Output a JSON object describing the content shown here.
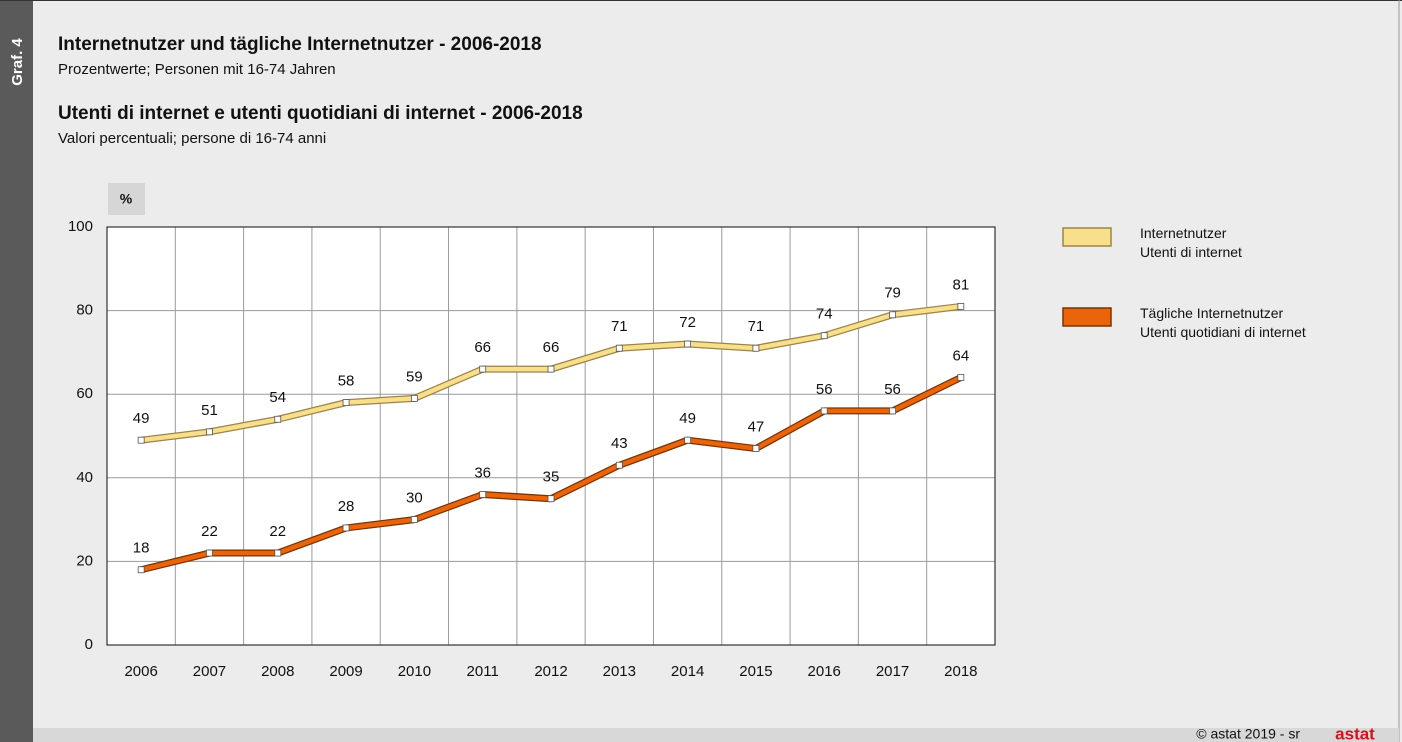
{
  "chart_data": {
    "type": "line",
    "figure_label": "Graf. 4",
    "title": "Internetnutzer und tägliche Internetnutzer - 2006-2018",
    "subtitle": "Prozentwerte; Personen mit 16-74 Jahren",
    "title_it": "Utenti di internet e utenti quotidiani di internet - 2006-2018",
    "subtitle_it": "Valori percentuali; persone di 16-74 anni",
    "y_unit": "%",
    "categories": [
      "2006",
      "2007",
      "2008",
      "2009",
      "2010",
      "2011",
      "2012",
      "2013",
      "2014",
      "2015",
      "2016",
      "2017",
      "2018"
    ],
    "series": [
      {
        "name": "Internetnutzer\nUtenti di internet",
        "color": "#f7df8c",
        "outline": "#9c8448",
        "values": [
          49,
          51,
          54,
          58,
          59,
          66,
          66,
          71,
          72,
          71,
          74,
          79,
          81
        ]
      },
      {
        "name": "Tägliche Internetnutzer\nUtenti quotidiani di internet",
        "color": "#ea640c",
        "outline": "#7a3300",
        "values": [
          18,
          22,
          22,
          28,
          30,
          36,
          35,
          43,
          49,
          47,
          56,
          56,
          64
        ]
      }
    ],
    "ylim": [
      0,
      100
    ],
    "yticks": [
      0,
      20,
      40,
      60,
      80,
      100
    ],
    "grid": true,
    "source": "© astat 2019 - sr",
    "logo": "astat"
  }
}
